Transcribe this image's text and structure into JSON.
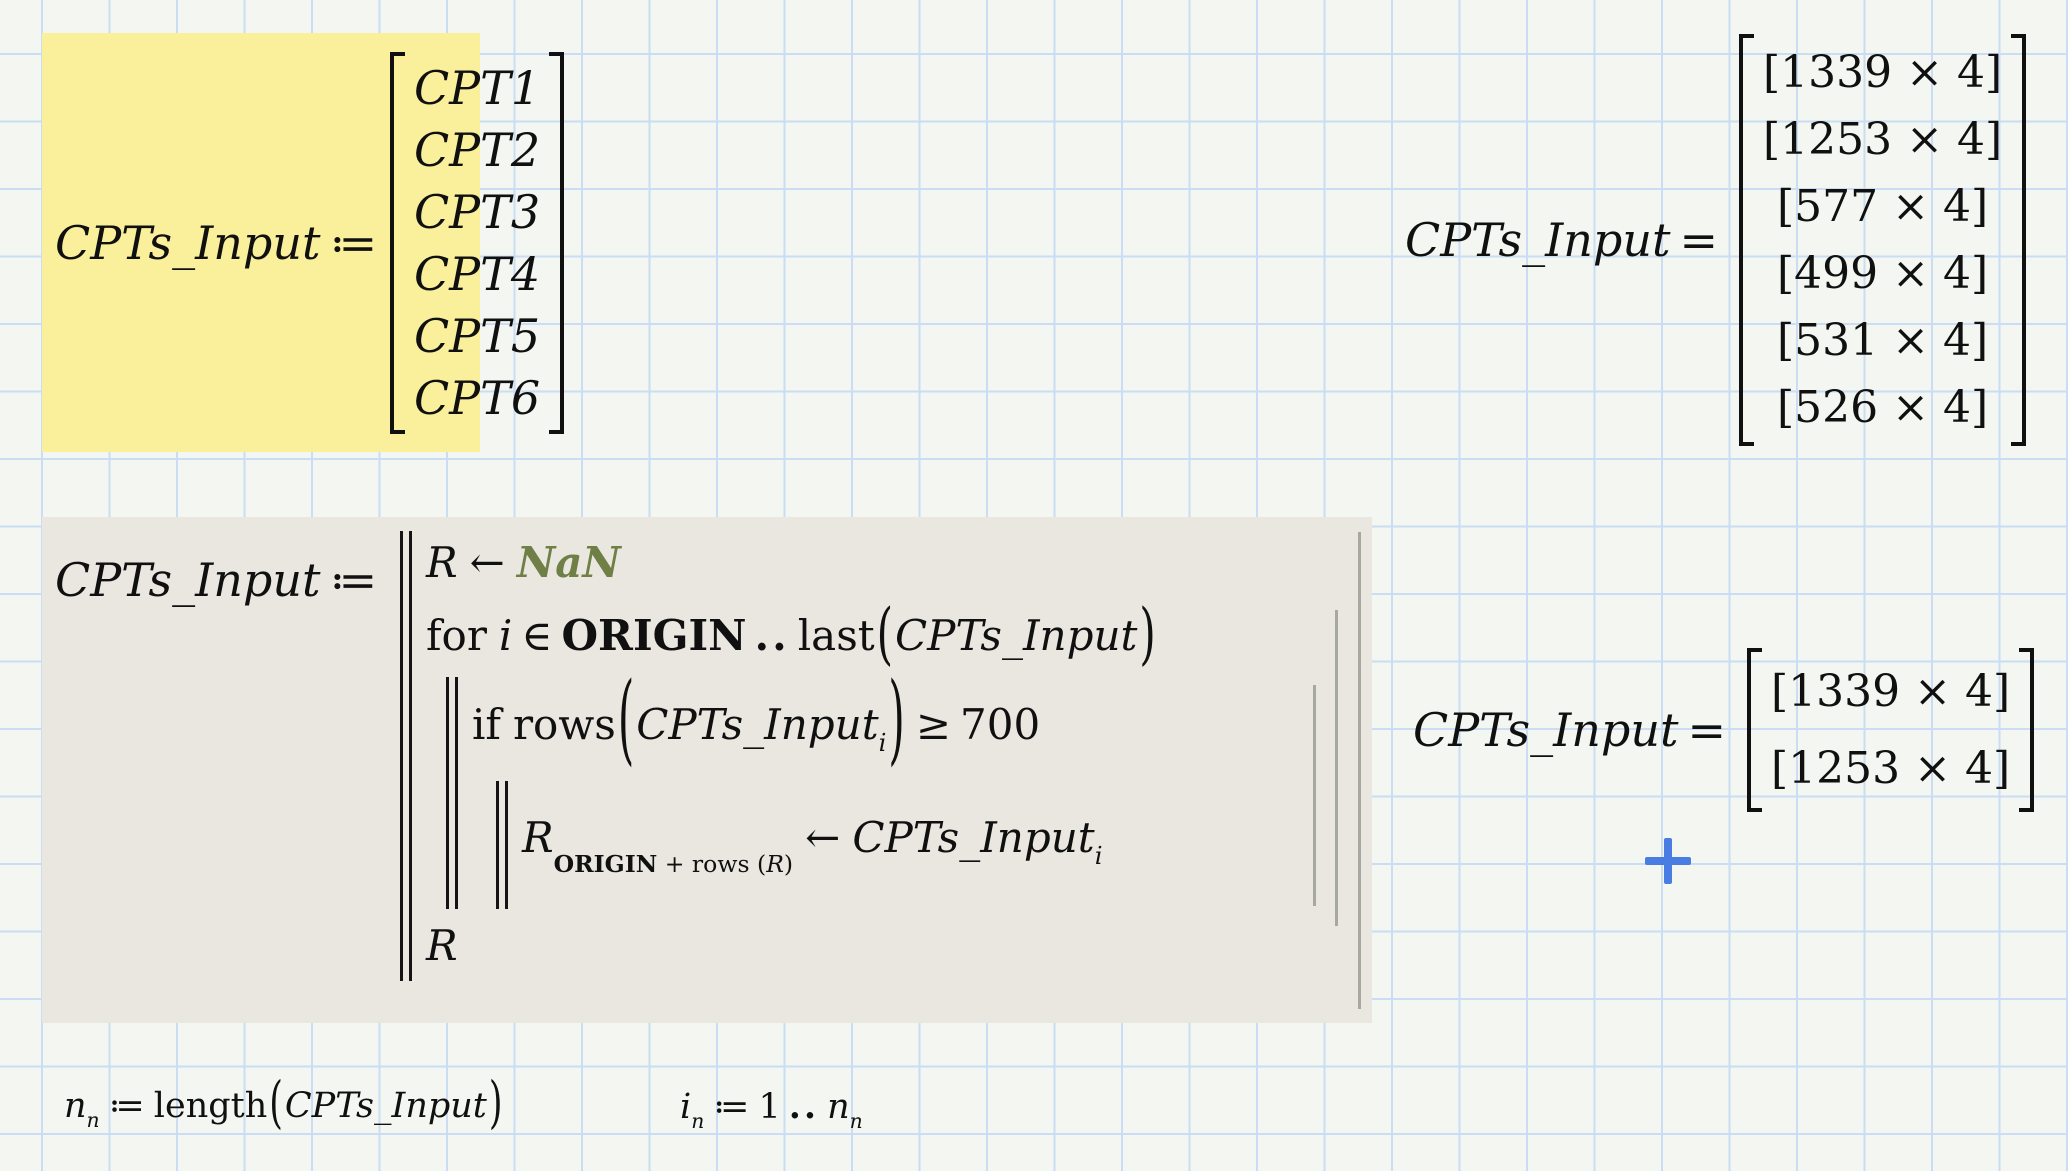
{
  "worksheet": {
    "background_color": "#F3F6F1",
    "grid_color": "#CADDF4"
  },
  "definition_input": {
    "lhs": "CPTs_Input",
    "assign_op": "≔",
    "highlight_color": "#FAF09B",
    "matrix_rows": [
      "CPT1",
      "CPT2",
      "CPT3",
      "CPT4",
      "CPT5",
      "CPT6"
    ]
  },
  "result_top": {
    "lhs": "CPTs_Input",
    "equals_op": "=",
    "matrix_rows": [
      "[1339 × 4]",
      "[1253 × 4]",
      "[577 × 4]",
      "[499 × 4]",
      "[531 × 4]",
      "[526 × 4]"
    ]
  },
  "program_definition": {
    "lhs": "CPTs_Input",
    "assign_op": "≔",
    "background_color": "#E9E7E0",
    "line_nan": {
      "var": "R",
      "arrow": "←",
      "value": "NaN",
      "value_color": "#6F7F45"
    },
    "line_for": {
      "keyword": "for",
      "var": "i",
      "in_op": "∈",
      "start": "ORIGIN",
      "range_op": "..",
      "fn": "last",
      "open": "(",
      "arg": "CPTs_Input",
      "close": ")"
    },
    "line_if": {
      "keyword": "if",
      "fn": "rows",
      "open": "(",
      "arg": "CPTs_Input",
      "arg_sub": "i",
      "close": ")",
      "op": "≥",
      "value": "700"
    },
    "line_assign": {
      "var": "R",
      "sub_start": "ORIGIN",
      "sub_plus": "+",
      "sub_fn": "rows",
      "sub_open": "(",
      "sub_arg": "R",
      "sub_close": ")",
      "arrow": "←",
      "rhs": "CPTs_Input",
      "rhs_sub": "i"
    },
    "line_return": {
      "var": "R"
    }
  },
  "result_filtered": {
    "lhs": "CPTs_Input",
    "equals_op": "=",
    "matrix_rows": [
      "[1339 × 4]",
      "[1253 × 4]"
    ]
  },
  "expr_n": {
    "var": "n",
    "var_sub": "n",
    "assign_op": "≔",
    "fn": "length",
    "open": "(",
    "arg": "CPTs_Input",
    "close": ")"
  },
  "expr_i": {
    "var": "i",
    "var_sub": "n",
    "assign_op": "≔",
    "start": "1",
    "range_op": "..",
    "end_var": "n",
    "end_sub": "n"
  },
  "cursor": {
    "color": "#4A7DE2"
  }
}
